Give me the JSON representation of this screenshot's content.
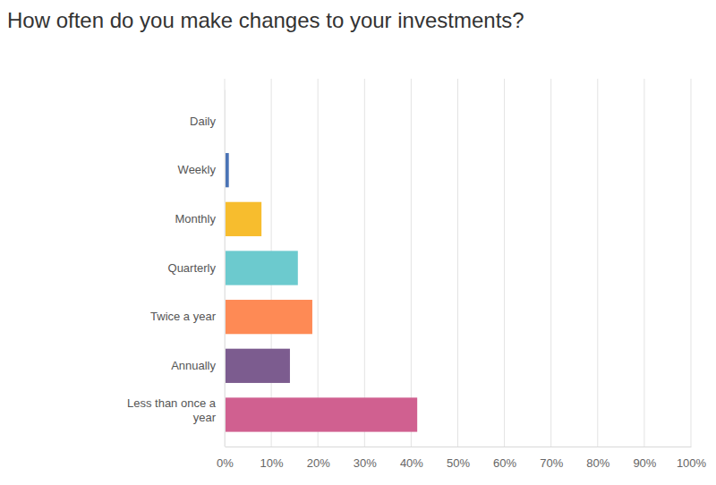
{
  "chart_data": {
    "type": "bar",
    "orientation": "horizontal",
    "title": "How often do you make changes to your investments?",
    "categories": [
      "Daily",
      "Weekly",
      "Monthly",
      "Quarterly",
      "Twice a year",
      "Annually",
      "Less than once a year"
    ],
    "values": [
      0,
      0.9,
      7.9,
      15.7,
      18.8,
      14.0,
      41.3
    ],
    "colors": [
      "#4a73b5",
      "#4a73b5",
      "#f7bd2e",
      "#6ccace",
      "#fe8a55",
      "#7c5c8f",
      "#d06090"
    ],
    "xlim": [
      0,
      100
    ],
    "xticks": [
      {
        "value": 0,
        "label": "0%"
      },
      {
        "value": 10,
        "label": "10%"
      },
      {
        "value": 20,
        "label": "20%"
      },
      {
        "value": 30,
        "label": "30%"
      },
      {
        "value": 40,
        "label": "40%"
      },
      {
        "value": 50,
        "label": "50%"
      },
      {
        "value": 60,
        "label": "60%"
      },
      {
        "value": 70,
        "label": "70%"
      },
      {
        "value": 80,
        "label": "80%"
      },
      {
        "value": 90,
        "label": "90%"
      },
      {
        "value": 100,
        "label": "100%"
      }
    ],
    "grid": true
  }
}
